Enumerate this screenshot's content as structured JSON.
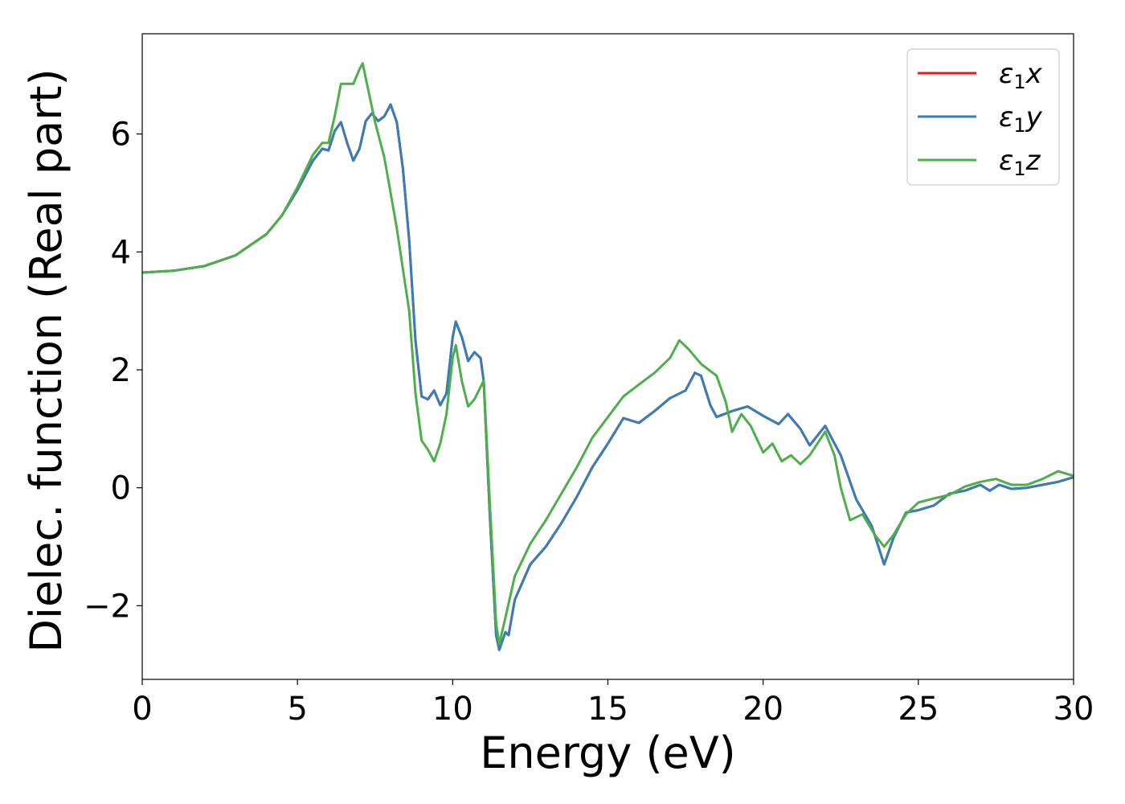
{
  "chart_data": {
    "type": "line",
    "title": "",
    "xlabel": "Energy (eV)",
    "ylabel": "Dielec. function (Real part)",
    "xlim": [
      0,
      30
    ],
    "ylim": [
      -3.25,
      7.7
    ],
    "xticks": [
      0,
      5,
      10,
      15,
      20,
      25,
      30
    ],
    "xtick_labels": [
      "0",
      "5",
      "10",
      "15",
      "20",
      "25",
      "30"
    ],
    "yticks": [
      -2,
      0,
      2,
      4,
      6
    ],
    "ytick_labels": [
      "−2",
      "0",
      "2",
      "4",
      "6"
    ],
    "grid": false,
    "legend_position": "top-right",
    "series": [
      {
        "name": "ε1x",
        "label_base": "ε",
        "label_sub": "1",
        "label_var": "x",
        "color": "#e41a1c",
        "points": [
          [
            0,
            3.65
          ],
          [
            1,
            3.68
          ],
          [
            2,
            3.76
          ],
          [
            3,
            3.94
          ],
          [
            4,
            4.3
          ],
          [
            4.5,
            4.62
          ],
          [
            5,
            5.05
          ],
          [
            5.5,
            5.55
          ],
          [
            5.8,
            5.75
          ],
          [
            6.0,
            5.72
          ],
          [
            6.2,
            6.05
          ],
          [
            6.4,
            6.2
          ],
          [
            6.6,
            5.85
          ],
          [
            6.8,
            5.55
          ],
          [
            7.0,
            5.75
          ],
          [
            7.2,
            6.22
          ],
          [
            7.4,
            6.35
          ],
          [
            7.6,
            6.22
          ],
          [
            7.8,
            6.3
          ],
          [
            8.0,
            6.5
          ],
          [
            8.2,
            6.2
          ],
          [
            8.4,
            5.4
          ],
          [
            8.6,
            4.2
          ],
          [
            8.8,
            2.5
          ],
          [
            9.0,
            1.55
          ],
          [
            9.2,
            1.5
          ],
          [
            9.4,
            1.65
          ],
          [
            9.6,
            1.4
          ],
          [
            9.8,
            1.6
          ],
          [
            10.0,
            2.55
          ],
          [
            10.1,
            2.82
          ],
          [
            10.3,
            2.55
          ],
          [
            10.5,
            2.15
          ],
          [
            10.7,
            2.3
          ],
          [
            10.9,
            2.2
          ],
          [
            11.0,
            1.8
          ],
          [
            11.2,
            -0.5
          ],
          [
            11.4,
            -2.5
          ],
          [
            11.5,
            -2.75
          ],
          [
            11.7,
            -2.45
          ],
          [
            11.8,
            -2.5
          ],
          [
            12.0,
            -1.9
          ],
          [
            12.5,
            -1.3
          ],
          [
            13.0,
            -1.0
          ],
          [
            13.5,
            -0.6
          ],
          [
            14.0,
            -0.15
          ],
          [
            14.5,
            0.35
          ],
          [
            15.0,
            0.75
          ],
          [
            15.5,
            1.18
          ],
          [
            16.0,
            1.1
          ],
          [
            16.5,
            1.3
          ],
          [
            17.0,
            1.52
          ],
          [
            17.5,
            1.65
          ],
          [
            17.8,
            1.95
          ],
          [
            18.0,
            1.9
          ],
          [
            18.3,
            1.4
          ],
          [
            18.5,
            1.2
          ],
          [
            19.0,
            1.3
          ],
          [
            19.5,
            1.38
          ],
          [
            20.0,
            1.22
          ],
          [
            20.5,
            1.08
          ],
          [
            20.8,
            1.25
          ],
          [
            21.2,
            1.0
          ],
          [
            21.5,
            0.72
          ],
          [
            22.0,
            1.05
          ],
          [
            22.5,
            0.55
          ],
          [
            23.0,
            -0.2
          ],
          [
            23.5,
            -0.65
          ],
          [
            23.9,
            -1.3
          ],
          [
            24.2,
            -0.85
          ],
          [
            24.6,
            -0.42
          ],
          [
            25.0,
            -0.38
          ],
          [
            25.5,
            -0.3
          ],
          [
            26.0,
            -0.1
          ],
          [
            26.5,
            -0.05
          ],
          [
            27.0,
            0.05
          ],
          [
            27.3,
            -0.05
          ],
          [
            27.6,
            0.05
          ],
          [
            28.0,
            -0.02
          ],
          [
            28.5,
            0.0
          ],
          [
            29.0,
            0.05
          ],
          [
            29.5,
            0.1
          ],
          [
            30.0,
            0.18
          ]
        ]
      },
      {
        "name": "ε1y",
        "label_base": "ε",
        "label_sub": "1",
        "label_var": "y",
        "color": "#377eb8",
        "points": [
          [
            0,
            3.65
          ],
          [
            1,
            3.68
          ],
          [
            2,
            3.76
          ],
          [
            3,
            3.94
          ],
          [
            4,
            4.3
          ],
          [
            4.5,
            4.62
          ],
          [
            5,
            5.05
          ],
          [
            5.5,
            5.55
          ],
          [
            5.8,
            5.75
          ],
          [
            6.0,
            5.72
          ],
          [
            6.2,
            6.05
          ],
          [
            6.4,
            6.2
          ],
          [
            6.6,
            5.85
          ],
          [
            6.8,
            5.55
          ],
          [
            7.0,
            5.75
          ],
          [
            7.2,
            6.22
          ],
          [
            7.4,
            6.35
          ],
          [
            7.6,
            6.22
          ],
          [
            7.8,
            6.3
          ],
          [
            8.0,
            6.5
          ],
          [
            8.2,
            6.2
          ],
          [
            8.4,
            5.4
          ],
          [
            8.6,
            4.2
          ],
          [
            8.8,
            2.5
          ],
          [
            9.0,
            1.55
          ],
          [
            9.2,
            1.5
          ],
          [
            9.4,
            1.65
          ],
          [
            9.6,
            1.4
          ],
          [
            9.8,
            1.6
          ],
          [
            10.0,
            2.55
          ],
          [
            10.1,
            2.82
          ],
          [
            10.3,
            2.55
          ],
          [
            10.5,
            2.15
          ],
          [
            10.7,
            2.3
          ],
          [
            10.9,
            2.2
          ],
          [
            11.0,
            1.8
          ],
          [
            11.2,
            -0.5
          ],
          [
            11.4,
            -2.5
          ],
          [
            11.5,
            -2.75
          ],
          [
            11.7,
            -2.45
          ],
          [
            11.8,
            -2.5
          ],
          [
            12.0,
            -1.9
          ],
          [
            12.5,
            -1.3
          ],
          [
            13.0,
            -1.0
          ],
          [
            13.5,
            -0.6
          ],
          [
            14.0,
            -0.15
          ],
          [
            14.5,
            0.35
          ],
          [
            15.0,
            0.75
          ],
          [
            15.5,
            1.18
          ],
          [
            16.0,
            1.1
          ],
          [
            16.5,
            1.3
          ],
          [
            17.0,
            1.52
          ],
          [
            17.5,
            1.65
          ],
          [
            17.8,
            1.95
          ],
          [
            18.0,
            1.9
          ],
          [
            18.3,
            1.4
          ],
          [
            18.5,
            1.2
          ],
          [
            19.0,
            1.3
          ],
          [
            19.5,
            1.38
          ],
          [
            20.0,
            1.22
          ],
          [
            20.5,
            1.08
          ],
          [
            20.8,
            1.25
          ],
          [
            21.2,
            1.0
          ],
          [
            21.5,
            0.72
          ],
          [
            22.0,
            1.05
          ],
          [
            22.5,
            0.55
          ],
          [
            23.0,
            -0.2
          ],
          [
            23.5,
            -0.65
          ],
          [
            23.9,
            -1.3
          ],
          [
            24.2,
            -0.85
          ],
          [
            24.6,
            -0.42
          ],
          [
            25.0,
            -0.38
          ],
          [
            25.5,
            -0.3
          ],
          [
            26.0,
            -0.1
          ],
          [
            26.5,
            -0.05
          ],
          [
            27.0,
            0.05
          ],
          [
            27.3,
            -0.05
          ],
          [
            27.6,
            0.05
          ],
          [
            28.0,
            -0.02
          ],
          [
            28.5,
            0.0
          ],
          [
            29.0,
            0.05
          ],
          [
            29.5,
            0.1
          ],
          [
            30.0,
            0.18
          ]
        ]
      },
      {
        "name": "ε1z",
        "label_base": "ε",
        "label_sub": "1",
        "label_var": "z",
        "color": "#4daf4a",
        "points": [
          [
            0,
            3.65
          ],
          [
            1,
            3.68
          ],
          [
            2,
            3.76
          ],
          [
            3,
            3.94
          ],
          [
            4,
            4.3
          ],
          [
            4.5,
            4.62
          ],
          [
            5,
            5.1
          ],
          [
            5.5,
            5.65
          ],
          [
            5.8,
            5.85
          ],
          [
            6.0,
            5.85
          ],
          [
            6.2,
            6.3
          ],
          [
            6.4,
            6.85
          ],
          [
            6.6,
            6.85
          ],
          [
            6.8,
            6.85
          ],
          [
            7.0,
            7.1
          ],
          [
            7.1,
            7.2
          ],
          [
            7.3,
            6.7
          ],
          [
            7.5,
            6.2
          ],
          [
            7.8,
            5.6
          ],
          [
            8.0,
            5.0
          ],
          [
            8.2,
            4.4
          ],
          [
            8.4,
            3.7
          ],
          [
            8.6,
            3.0
          ],
          [
            8.8,
            1.6
          ],
          [
            9.0,
            0.8
          ],
          [
            9.2,
            0.65
          ],
          [
            9.4,
            0.45
          ],
          [
            9.6,
            0.75
          ],
          [
            9.8,
            1.25
          ],
          [
            10.0,
            2.2
          ],
          [
            10.1,
            2.42
          ],
          [
            10.3,
            1.8
          ],
          [
            10.5,
            1.38
          ],
          [
            10.7,
            1.5
          ],
          [
            11.0,
            1.82
          ],
          [
            11.2,
            -0.3
          ],
          [
            11.4,
            -2.3
          ],
          [
            11.5,
            -2.65
          ],
          [
            11.7,
            -2.2
          ],
          [
            12.0,
            -1.5
          ],
          [
            12.5,
            -0.95
          ],
          [
            13.0,
            -0.55
          ],
          [
            13.5,
            -0.1
          ],
          [
            14.0,
            0.35
          ],
          [
            14.5,
            0.85
          ],
          [
            15.0,
            1.2
          ],
          [
            15.5,
            1.55
          ],
          [
            16.0,
            1.75
          ],
          [
            16.5,
            1.95
          ],
          [
            17.0,
            2.2
          ],
          [
            17.3,
            2.5
          ],
          [
            17.6,
            2.35
          ],
          [
            18.0,
            2.1
          ],
          [
            18.5,
            1.9
          ],
          [
            18.8,
            1.45
          ],
          [
            19.0,
            0.95
          ],
          [
            19.3,
            1.25
          ],
          [
            19.6,
            1.05
          ],
          [
            20.0,
            0.6
          ],
          [
            20.3,
            0.75
          ],
          [
            20.6,
            0.45
          ],
          [
            20.9,
            0.55
          ],
          [
            21.2,
            0.4
          ],
          [
            21.5,
            0.55
          ],
          [
            22.0,
            0.95
          ],
          [
            22.3,
            0.55
          ],
          [
            22.5,
            0.0
          ],
          [
            22.8,
            -0.55
          ],
          [
            23.2,
            -0.45
          ],
          [
            23.6,
            -0.8
          ],
          [
            23.9,
            -1.0
          ],
          [
            24.2,
            -0.8
          ],
          [
            24.6,
            -0.45
          ],
          [
            25.0,
            -0.25
          ],
          [
            25.5,
            -0.18
          ],
          [
            26.0,
            -0.12
          ],
          [
            26.5,
            0.02
          ],
          [
            27.0,
            0.1
          ],
          [
            27.5,
            0.15
          ],
          [
            28.0,
            0.05
          ],
          [
            28.5,
            0.05
          ],
          [
            29.0,
            0.15
          ],
          [
            29.5,
            0.28
          ],
          [
            30.0,
            0.2
          ]
        ]
      }
    ]
  }
}
